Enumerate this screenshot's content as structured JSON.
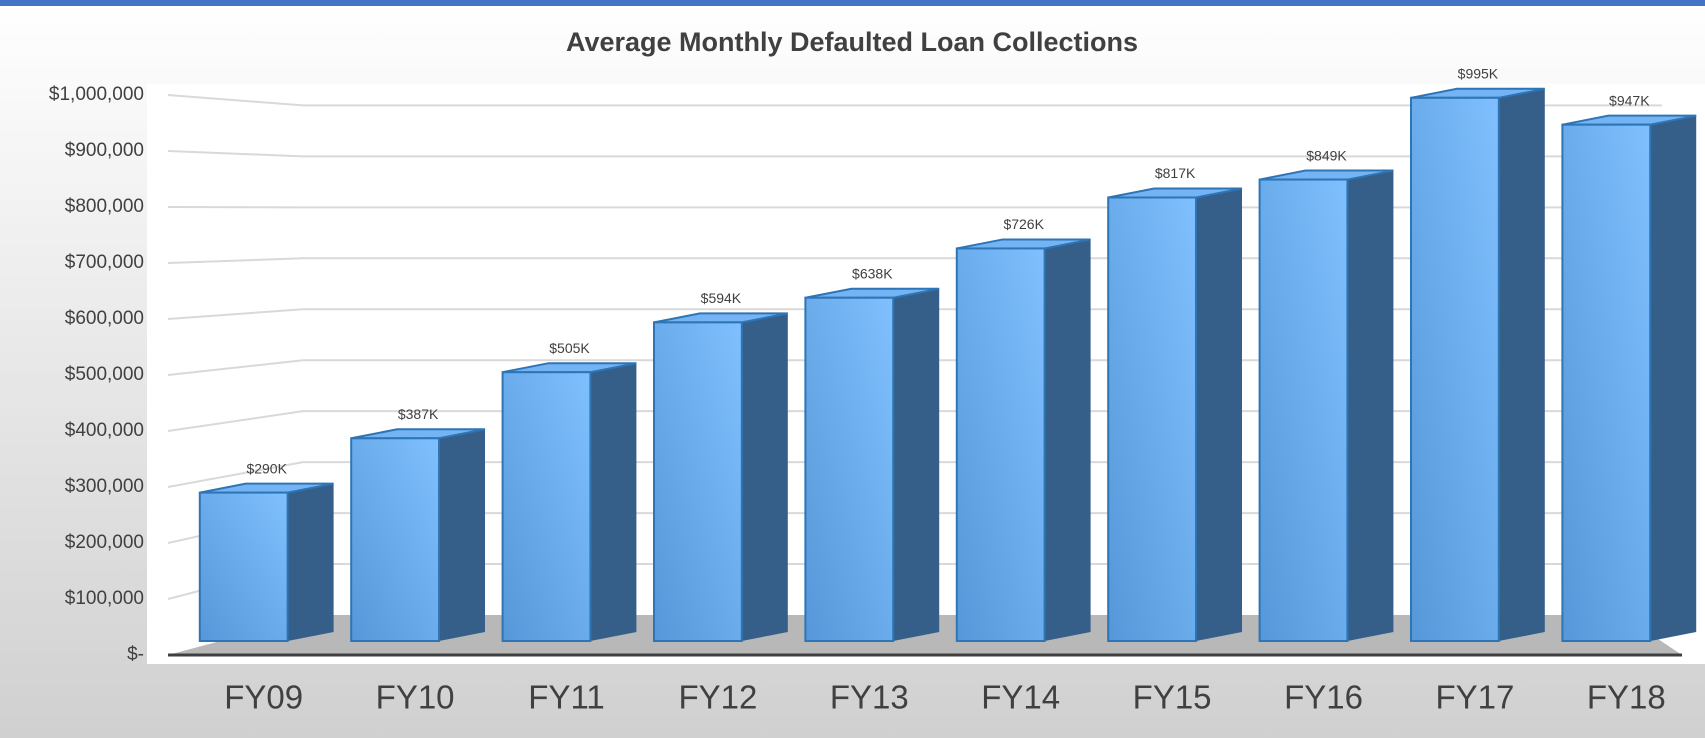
{
  "chart_data": {
    "type": "bar3d",
    "title": "Average Monthly Defaulted Loan Collections",
    "categories": [
      "FY09",
      "FY10",
      "FY11",
      "FY12",
      "FY13",
      "FY14",
      "FY15",
      "FY16",
      "FY17",
      "FY18"
    ],
    "values": [
      290000,
      387000,
      505000,
      594000,
      638000,
      726000,
      817000,
      849000,
      995000,
      947000
    ],
    "value_labels": [
      "$290K",
      "$387K",
      "$505K",
      "$594K",
      "$638K",
      "$726K",
      "$817K",
      "$849K",
      "$995K",
      "$947K"
    ],
    "color": "#5b9bd5",
    "ylim": [
      0,
      1000000
    ],
    "yticks": [
      {
        "value": 0,
        "label": "$-"
      },
      {
        "value": 100000,
        "label": "$100,000"
      },
      {
        "value": 200000,
        "label": "$200,000"
      },
      {
        "value": 300000,
        "label": "$300,000"
      },
      {
        "value": 400000,
        "label": "$400,000"
      },
      {
        "value": 500000,
        "label": "$500,000"
      },
      {
        "value": 600000,
        "label": "$600,000"
      },
      {
        "value": 700000,
        "label": "$700,000"
      },
      {
        "value": 800000,
        "label": "$800,000"
      },
      {
        "value": 900000,
        "label": "$900,000"
      },
      {
        "value": 1000000,
        "label": "$1,000,000"
      }
    ],
    "grid": true
  }
}
